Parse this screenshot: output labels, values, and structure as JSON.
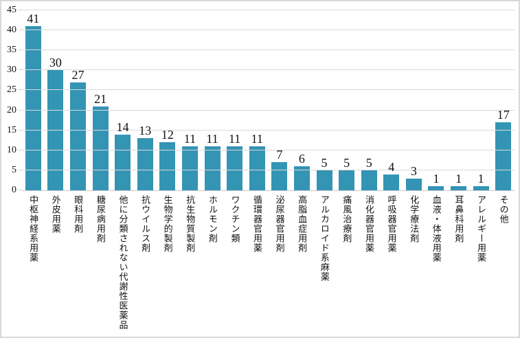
{
  "chart_data": {
    "type": "bar",
    "title": "",
    "categories": [
      "中枢神経系用薬",
      "外皮用薬",
      "眼科用剤",
      "糖尿病用剤",
      "他に分類されない代謝性医薬品",
      "抗ウイルス剤",
      "生物学的製剤",
      "抗生物質製剤",
      "ホルモン剤",
      "ワクチン類",
      "循環器官用薬",
      "泌尿器官用剤",
      "高脂血症用剤",
      "アルカロイド系麻薬",
      "痛風治療剤",
      "消化器官用薬",
      "呼吸器官用薬",
      "化学療法剤",
      "血液・体液用薬",
      "耳鼻科用剤",
      "アレルギー用薬",
      "その他"
    ],
    "values": [
      41,
      30,
      27,
      21,
      14,
      13,
      12,
      11,
      11,
      11,
      11,
      7,
      6,
      5,
      5,
      5,
      4,
      3,
      1,
      1,
      1,
      17
    ],
    "xlabel": "",
    "ylabel": "",
    "ylim": [
      0,
      45
    ],
    "ytick_step": 5,
    "grid": true,
    "legend": false,
    "value_labels_shown": true,
    "colors": {
      "bar": "#3494b4",
      "gridline": "#d9d9d9",
      "axis_line": "#c9c9c9",
      "text": "#111111",
      "frame_border": "#d9d9d9",
      "background": "#ffffff"
    }
  }
}
